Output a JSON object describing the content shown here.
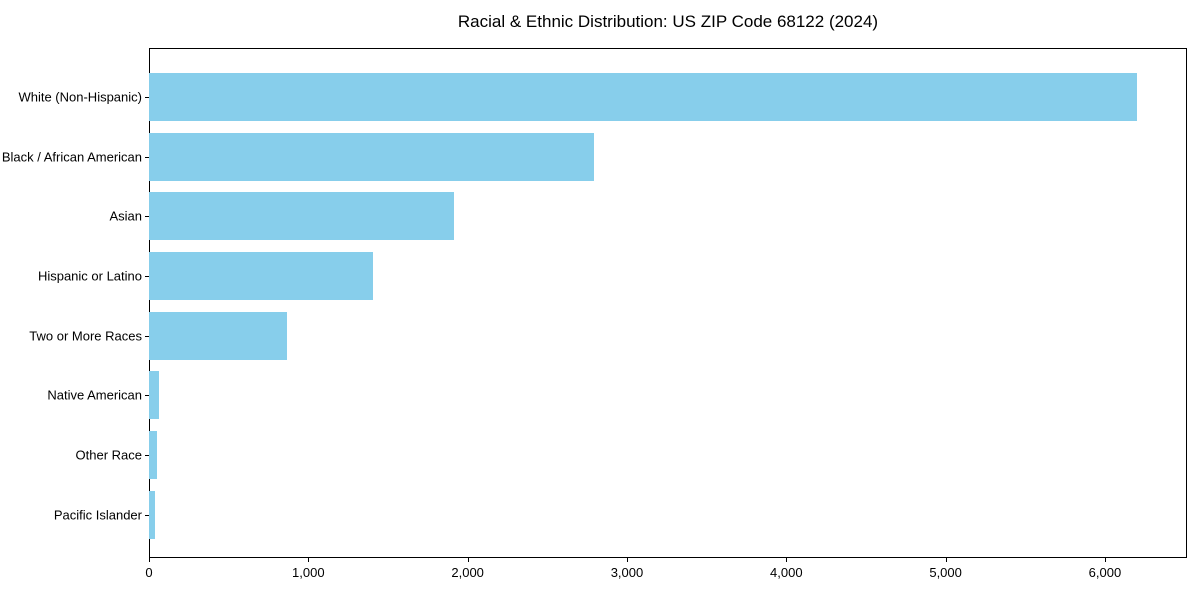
{
  "title": "Racial & Ethnic Distribution: US ZIP Code 68122 (2024)",
  "chart_data": {
    "type": "bar",
    "orientation": "horizontal",
    "title": "Racial & Ethnic Distribution: US ZIP Code 68122 (2024)",
    "categories": [
      "White (Non-Hispanic)",
      "Black / African American",
      "Asian",
      "Hispanic or Latino",
      "Two or More Races",
      "Native American",
      "Other Race",
      "Pacific Islander"
    ],
    "values": [
      6200,
      2790,
      1915,
      1405,
      865,
      60,
      50,
      38
    ],
    "xlabel": "",
    "ylabel": "",
    "xlim": [
      0,
      6515
    ],
    "x_ticks": [
      0,
      1000,
      2000,
      3000,
      4000,
      5000,
      6000
    ],
    "x_tick_labels": [
      "0",
      "1,000",
      "2,000",
      "3,000",
      "4,000",
      "5,000",
      "6,000"
    ],
    "bar_color": "#87CEEB",
    "background_color": "#ffffff",
    "axis_color": "#000000",
    "grid": false,
    "legend": null
  }
}
